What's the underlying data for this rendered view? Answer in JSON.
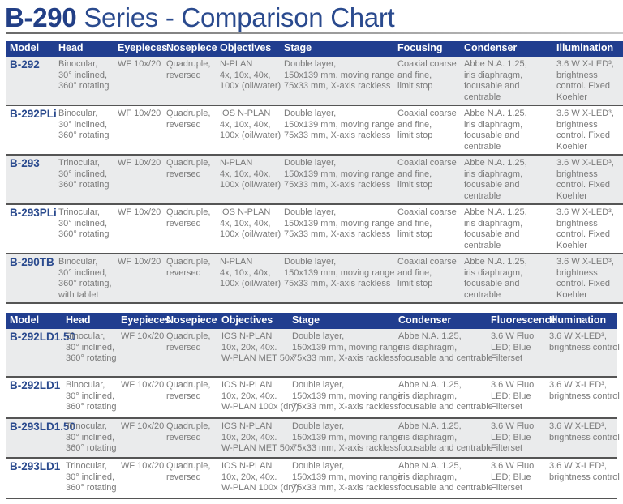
{
  "title": {
    "bold": "B-290",
    "rest": " Series - Comparison Chart"
  },
  "colors": {
    "header_bg": "#213e8f",
    "title": "#2a4a8e",
    "model": "#2a4a8e",
    "row_alt": "#eaebec",
    "text": "#7a7a7a"
  },
  "table1": {
    "headers": [
      "Model",
      "Head",
      "Eyepieces",
      "Nosepiece",
      "Objectives",
      "Stage",
      "Focusing",
      "Condenser",
      "Illumination"
    ],
    "rows": [
      {
        "model": "B-292",
        "head": [
          "Binocular,",
          "30° inclined,",
          "360° rotating"
        ],
        "eyepieces": [
          "WF 10x/20"
        ],
        "nosepiece": [
          "Quadruple,",
          "reversed"
        ],
        "objectives": [
          "N-PLAN",
          "4x, 10x, 40x,",
          "100x (oil/water)"
        ],
        "stage": [
          "Double layer,",
          "150x139 mm, moving range",
          "75x33 mm, X-axis rackless"
        ],
        "focusing": [
          "Coaxial coarse",
          "and fine,",
          "limit stop"
        ],
        "condenser": [
          "Abbe N.A. 1.25,",
          "iris diaphragm,",
          "focusable and",
          "centrable"
        ],
        "illumination": [
          "3.6 W X-LED³,",
          "brightness",
          "control. Fixed",
          "Koehler"
        ]
      },
      {
        "model": "B-292PLi",
        "head": [
          "Binocular,",
          "30° inclined,",
          "360° rotating"
        ],
        "eyepieces": [
          "WF 10x/20"
        ],
        "nosepiece": [
          "Quadruple,",
          "reversed"
        ],
        "objectives": [
          "IOS N-PLAN",
          "4x, 10x, 40x,",
          "100x (oil/water)"
        ],
        "stage": [
          "Double layer,",
          "150x139 mm, moving range",
          "75x33 mm, X-axis rackless"
        ],
        "focusing": [
          "Coaxial coarse",
          "and fine,",
          "limit stop"
        ],
        "condenser": [
          "Abbe N.A. 1.25,",
          "iris diaphragm,",
          "focusable and",
          "centrable"
        ],
        "illumination": [
          "3.6 W X-LED³,",
          "brightness",
          "control. Fixed",
          "Koehler"
        ]
      },
      {
        "model": "B-293",
        "head": [
          "Trinocular,",
          "30° inclined,",
          "360° rotating"
        ],
        "eyepieces": [
          "WF 10x/20"
        ],
        "nosepiece": [
          "Quadruple,",
          "reversed"
        ],
        "objectives": [
          "N-PLAN",
          "4x, 10x, 40x,",
          "100x (oil/water)"
        ],
        "stage": [
          "Double layer,",
          "150x139 mm, moving range",
          "75x33 mm, X-axis rackless"
        ],
        "focusing": [
          "Coaxial coarse",
          "and fine,",
          "limit stop"
        ],
        "condenser": [
          "Abbe N.A. 1.25,",
          "iris diaphragm,",
          "focusable and",
          "centrable"
        ],
        "illumination": [
          "3.6 W X-LED³,",
          "brightness",
          "control. Fixed",
          "Koehler"
        ]
      },
      {
        "model": "B-293PLi",
        "head": [
          "Trinocular,",
          "30° inclined,",
          "360° rotating"
        ],
        "eyepieces": [
          "WF 10x/20"
        ],
        "nosepiece": [
          "Quadruple,",
          "reversed"
        ],
        "objectives": [
          "IOS N-PLAN",
          "4x, 10x, 40x,",
          "100x (oil/water)"
        ],
        "stage": [
          "Double layer,",
          "150x139 mm, moving range",
          "75x33 mm, X-axis rackless"
        ],
        "focusing": [
          "Coaxial coarse",
          "and fine,",
          "limit stop"
        ],
        "condenser": [
          "Abbe N.A. 1.25,",
          "iris diaphragm,",
          "focusable and",
          "centrable"
        ],
        "illumination": [
          "3.6 W X-LED³,",
          "brightness",
          "control. Fixed",
          "Koehler"
        ]
      },
      {
        "model": "B-290TB",
        "head": [
          "Binocular,",
          "30° inclined,",
          "360° rotating,",
          "with tablet"
        ],
        "eyepieces": [
          "WF 10x/20"
        ],
        "nosepiece": [
          "Quadruple,",
          "reversed"
        ],
        "objectives": [
          "N-PLAN",
          "4x, 10x, 40x,",
          "100x (oil/water)"
        ],
        "stage": [
          "Double layer,",
          "150x139 mm, moving range",
          "75x33 mm, X-axis rackless"
        ],
        "focusing": [
          "Coaxial coarse",
          "and fine,",
          "limit stop"
        ],
        "condenser": [
          "Abbe N.A. 1.25,",
          "iris diaphragm,",
          "focusable and",
          "centrable"
        ],
        "illumination": [
          "3.6 W X-LED³,",
          "brightness",
          "control. Fixed",
          "Koehler"
        ]
      }
    ]
  },
  "table2": {
    "headers": [
      "Model",
      "Head",
      "Eyepieces",
      "Nosepiece",
      "Objectives",
      "Stage",
      "Condenser",
      "Fluorescence",
      "Illumination"
    ],
    "rows": [
      {
        "model": "B-292LD1.50",
        "head": [
          "Binocular,",
          "30° inclined,",
          "360° rotating"
        ],
        "eyepieces": [
          "WF 10x/20"
        ],
        "nosepiece": [
          "Quadruple,",
          "reversed"
        ],
        "objectives": [
          "IOS N-PLAN",
          "10x, 20x, 40x.",
          "W-PLAN MET 50x"
        ],
        "stage": [
          "Double layer,",
          "150x139 mm, moving range",
          "75x33 mm, X-axis rackless"
        ],
        "condenser": [
          "Abbe N.A. 1.25,",
          "iris diaphragm,",
          "focusable and centrable"
        ],
        "fluorescence": [
          "3.6 W Fluo",
          "LED; Blue",
          "Filterset"
        ],
        "illumination": [
          "3.6 W X-LED³,",
          "brightness control"
        ]
      },
      {
        "model": "B-292LD1",
        "head": [
          "Binocular,",
          "30° inclined,",
          "360° rotating"
        ],
        "eyepieces": [
          "WF 10x/20"
        ],
        "nosepiece": [
          "Quadruple,",
          "reversed"
        ],
        "objectives": [
          "IOS N-PLAN",
          "10x, 20x, 40x.",
          "W-PLAN 100x (dry)"
        ],
        "stage": [
          "Double layer,",
          "150x139 mm, moving range",
          "75x33 mm, X-axis rackless"
        ],
        "condenser": [
          "Abbe N.A. 1.25,",
          "iris diaphragm,",
          "focusable and centrable"
        ],
        "fluorescence": [
          "3.6 W Fluo",
          "LED; Blue",
          "Filterset"
        ],
        "illumination": [
          "3.6 W X-LED³,",
          "brightness control"
        ]
      },
      {
        "model": "B-293LD1.50",
        "head": [
          "Trinocular,",
          "30° inclined,",
          "360° rotating"
        ],
        "eyepieces": [
          "WF 10x/20"
        ],
        "nosepiece": [
          "Quadruple,",
          "reversed"
        ],
        "objectives": [
          "IOS N-PLAN",
          "10x, 20x, 40x.",
          "W-PLAN MET 50x"
        ],
        "stage": [
          "Double layer,",
          "150x139 mm, moving range",
          "75x33 mm, X-axis rackless"
        ],
        "condenser": [
          "Abbe N.A. 1.25,",
          "iris diaphragm,",
          "focusable and centrable"
        ],
        "fluorescence": [
          "3.6 W Fluo",
          "LED; Blue",
          "Filterset"
        ],
        "illumination": [
          "3.6 W X-LED³,",
          "brightness control"
        ]
      },
      {
        "model": "B-293LD1",
        "head": [
          "Trinocular,",
          "30° inclined,",
          "360° rotating"
        ],
        "eyepieces": [
          "WF 10x/20"
        ],
        "nosepiece": [
          "Quadruple,",
          "reversed"
        ],
        "objectives": [
          "IOS N-PLAN",
          "10x, 20x, 40x.",
          "W-PLAN 100x (dry)"
        ],
        "stage": [
          "Double layer,",
          "150x139 mm, moving range",
          "75x33 mm, X-axis rackless"
        ],
        "condenser": [
          "Abbe N.A. 1.25,",
          "iris diaphragm,",
          "focusable and centrable"
        ],
        "fluorescence": [
          "3.6 W Fluo",
          "LED; Blue",
          "Filterset"
        ],
        "illumination": [
          "3.6 W X-LED³,",
          "brightness control"
        ]
      }
    ]
  }
}
